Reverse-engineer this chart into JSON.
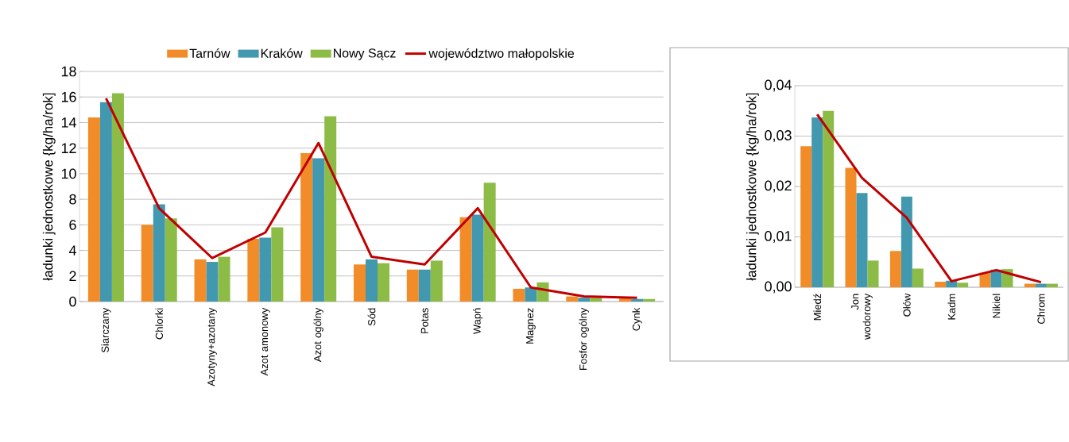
{
  "chart_data": [
    {
      "type": "bar",
      "ylabel": "ładunki jednostkowe {kg/ha/rok]",
      "categories": [
        "Siarczany",
        "Chlorki",
        "Azotyny+azotany",
        "Azot amonowy",
        "Azot ogólny",
        "Sód",
        "Potas",
        "Wapń",
        "Magnez",
        "Fosfor ogólny",
        "Cynk"
      ],
      "series": [
        {
          "name": "Tarnów",
          "color": "#f28c28",
          "values": [
            14.4,
            6.0,
            3.3,
            4.9,
            11.6,
            2.9,
            2.5,
            6.6,
            1.0,
            0.4,
            0.3
          ]
        },
        {
          "name": "Kraków",
          "color": "#4198af",
          "values": [
            15.6,
            7.6,
            3.1,
            5.0,
            11.2,
            3.3,
            2.5,
            6.8,
            1.1,
            0.3,
            0.2
          ]
        },
        {
          "name": "Nowy Sącz",
          "color": "#8cbc46",
          "values": [
            16.3,
            6.5,
            3.5,
            5.8,
            14.5,
            3.0,
            3.2,
            9.3,
            1.5,
            0.3,
            0.2
          ]
        },
        {
          "name": "województwo małopolskie",
          "type": "line",
          "color": "#c00000",
          "values": [
            15.9,
            7.3,
            3.4,
            5.4,
            12.4,
            3.5,
            2.9,
            7.3,
            1.1,
            0.4,
            0.3
          ]
        }
      ],
      "ylim": [
        0,
        18
      ],
      "yticks": [
        0,
        2,
        4,
        6,
        8,
        10,
        12,
        14,
        16,
        18
      ],
      "grid": "y",
      "legend": "top"
    },
    {
      "type": "bar",
      "ylabel": "ładunki jednostkowe {kg/ha/rok]",
      "categories": [
        "Miedź",
        "Jon wodorowy",
        "Ołów",
        "Kadm",
        "Nikiel",
        "Chrom"
      ],
      "series": [
        {
          "color": "#f28c28",
          "values": [
            0.028,
            0.0237,
            0.0072,
            0.0011,
            0.0029,
            0.0007
          ]
        },
        {
          "color": "#4198af",
          "values": [
            0.0337,
            0.0187,
            0.018,
            0.0013,
            0.0035,
            0.0007
          ]
        },
        {
          "color": "#8cbc46",
          "values": [
            0.035,
            0.0053,
            0.0037,
            0.0009,
            0.0036,
            0.0007
          ]
        },
        {
          "type": "line",
          "color": "#c00000",
          "values": [
            0.0343,
            0.0217,
            0.0138,
            0.0012,
            0.0034,
            0.001
          ]
        }
      ],
      "ylim": [
        0,
        0.04
      ],
      "yticks": [
        {
          "value": 0,
          "label": "0,00"
        },
        {
          "value": 0.01,
          "label": "0,01"
        },
        {
          "value": 0.02,
          "label": "0,02"
        },
        {
          "value": 0.03,
          "label": "0,03"
        },
        {
          "value": 0.04,
          "label": "0,04"
        }
      ],
      "grid": "y"
    }
  ]
}
